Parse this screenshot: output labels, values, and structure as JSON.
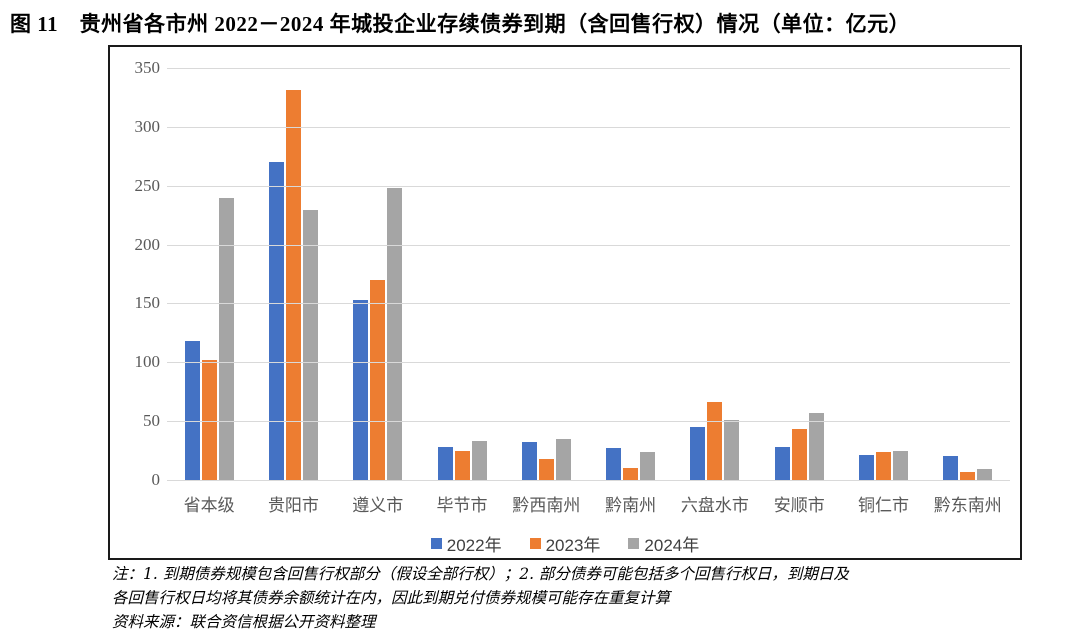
{
  "figure": {
    "title": "图 11　贵州省各市州 2022－2024 年城投企业存续债券到期（含回售行权）情况（单位：亿元）"
  },
  "chart_data": {
    "type": "bar",
    "title": "贵州省各市州2022-2024年城投企业存续债券到期（含回售行权）情况",
    "unit": "亿元",
    "categories": [
      "省本级",
      "贵阳市",
      "遵义市",
      "毕节市",
      "黔西南州",
      "黔南州",
      "六盘水市",
      "安顺市",
      "铜仁市",
      "黔东南州"
    ],
    "series": [
      {
        "name": "2022年",
        "color": "#4472C4",
        "values": [
          118,
          270,
          153,
          28,
          32,
          27,
          45,
          28,
          21,
          20
        ]
      },
      {
        "name": "2023年",
        "color": "#ED7D31",
        "values": [
          102,
          331,
          170,
          25,
          18,
          10,
          66,
          43,
          24,
          7
        ]
      },
      {
        "name": "2024年",
        "color": "#A5A5A5",
        "values": [
          240,
          229,
          248,
          33,
          35,
          24,
          51,
          57,
          25,
          9
        ]
      }
    ],
    "xlabel": "",
    "ylabel": "",
    "ylim": [
      0,
      350
    ],
    "ytick_step": 50,
    "grid": true,
    "legend_position": "bottom"
  },
  "notes": {
    "line1": "注：1. 到期债券规模包含回售行权部分（假设全部行权）；2. 部分债券可能包括多个回售行权日，到期日及",
    "line2": "各回售行权日均将其债券余额统计在内，因此到期兑付债券规模可能存在重复计算",
    "line3": "资料来源：联合资信根据公开资料整理"
  },
  "colors": {
    "gridline": "#D9D9D9",
    "axis_text": "#595959",
    "border": "#1A1A1A",
    "background": "#FFFFFF"
  }
}
